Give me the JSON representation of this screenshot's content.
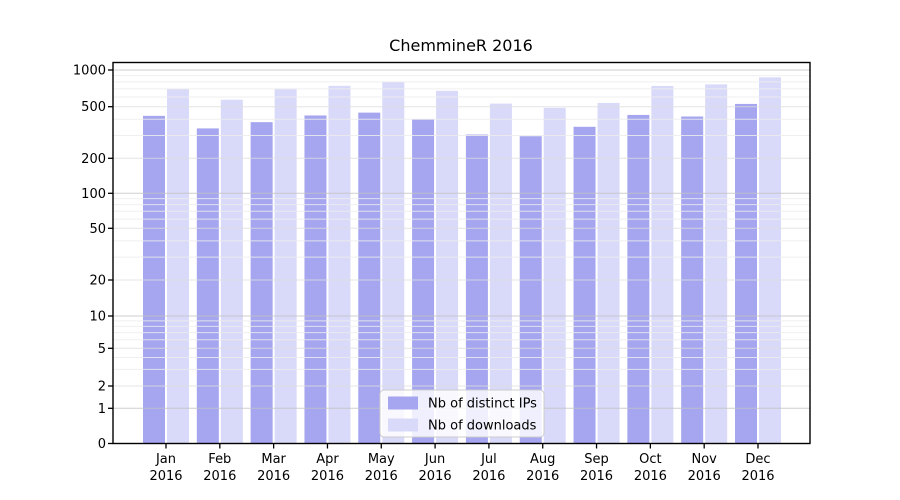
{
  "chart_data": {
    "type": "bar",
    "title": "ChemmineR 2016",
    "categories": [
      "Jan",
      "Feb",
      "Mar",
      "Apr",
      "May",
      "Jun",
      "Jul",
      "Aug",
      "Sep",
      "Oct",
      "Nov",
      "Dec"
    ],
    "category_year": "2016",
    "series": [
      {
        "name": "Nb of distinct IPs",
        "color": "#a5a5f0",
        "values": [
          425,
          340,
          380,
          428,
          450,
          400,
          305,
          296,
          350,
          432,
          420,
          527
        ]
      },
      {
        "name": "Nb of downloads",
        "color": "#d9d9f9",
        "values": [
          700,
          570,
          705,
          742,
          798,
          675,
          530,
          490,
          537,
          740,
          762,
          870
        ]
      }
    ],
    "yscale": "symlog",
    "y_ticks": [
      0,
      1,
      2,
      5,
      10,
      20,
      50,
      100,
      200,
      500,
      1000
    ],
    "ylim": [
      0,
      1150
    ],
    "grid": true,
    "legend_position": "lower-center-inside",
    "colors": {
      "bar_dark": "#a5a5f0",
      "bar_light": "#d9d9f9",
      "grid_decade": "#c3c3c3",
      "grid_mid": "#dddddd",
      "grid_minor": "#ececec",
      "frame": "#000000",
      "legend_border": "#cccccc",
      "legend_bg": "#ffffff"
    }
  }
}
